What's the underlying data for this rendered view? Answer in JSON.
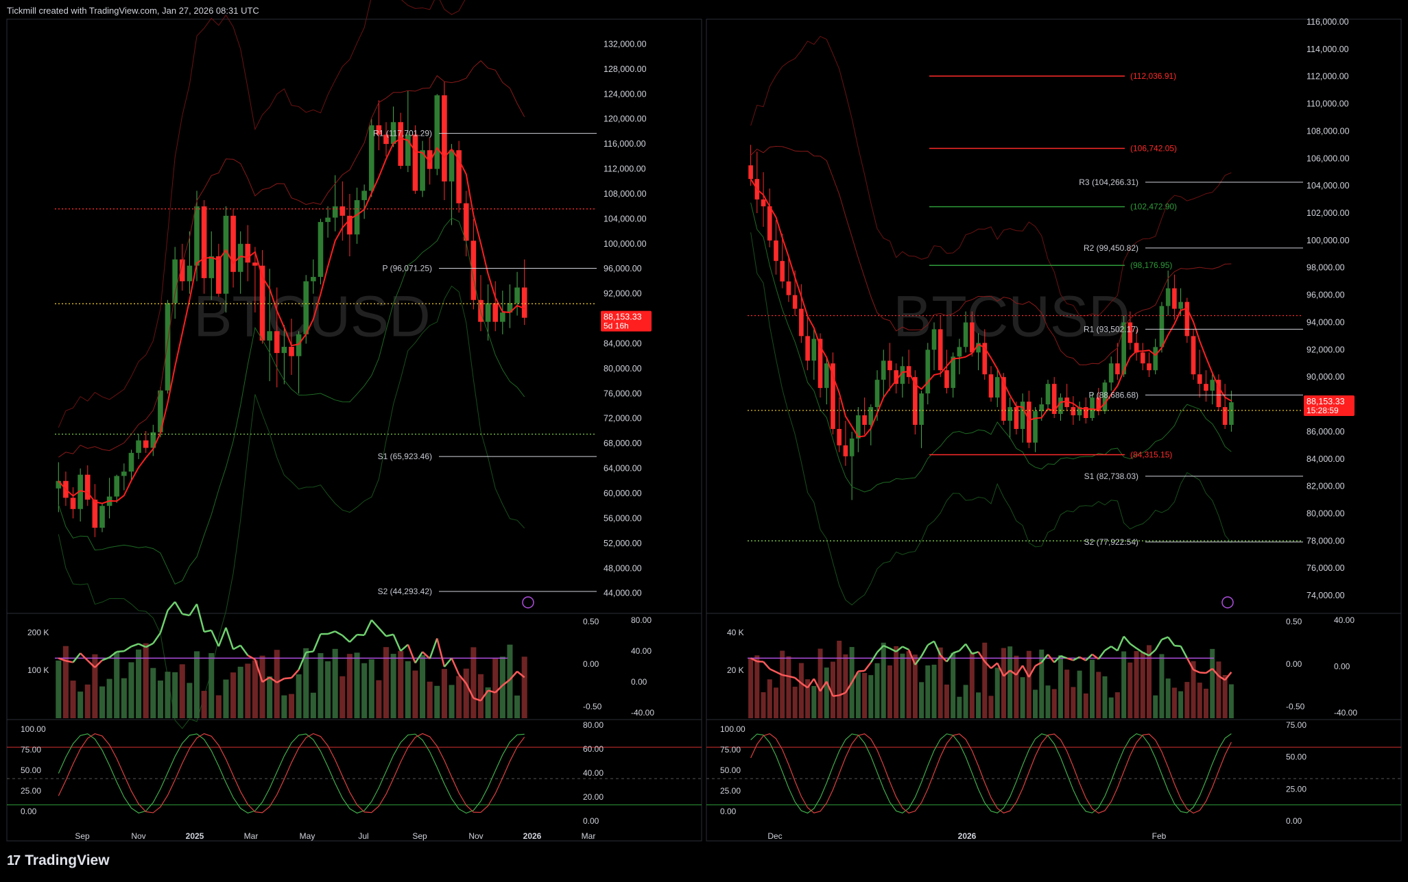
{
  "header": {
    "credit": "Tickmill created with TradingView.com, Jan 27, 2026 08:31 UTC"
  },
  "footer": {
    "brand": "TradingView",
    "logo_icon": "tradingview-logo-icon"
  },
  "colors": {
    "up": "#2e7d32",
    "down": "#ff2a2a",
    "background": "#000000",
    "axis_text": "#d1d4dc",
    "grid": "#1a1a1a",
    "pivot": "#ffffff",
    "price_badge": "#ff1f1f",
    "purple": "#b04fe0"
  },
  "chart_data": [
    {
      "type": "candlestick",
      "symbol_watermark": "BTCUSD",
      "timeframe": "weekly",
      "price_axis": {
        "ticks": [
          "132,000.00",
          "128,000.00",
          "124,000.00",
          "120,000.00",
          "116,000.00",
          "112,000.00",
          "108,000.00",
          "104,000.00",
          "100,000.00",
          "96,000.00",
          "92,000.00",
          "88,000.00",
          "84,000.00",
          "80,000.00",
          "76,000.00",
          "72,000.00",
          "68,000.00",
          "64,000.00",
          "60,000.00",
          "56,000.00",
          "52,000.00",
          "48,000.00",
          "44,000.00"
        ],
        "ylim": [
          41000,
          136000
        ]
      },
      "time_axis": {
        "ticks": [
          "Sep",
          "Nov",
          "2025",
          "Mar",
          "May",
          "Jul",
          "Sep",
          "Nov",
          "2026",
          "Mar"
        ],
        "bold": [
          "2025",
          "2026"
        ]
      },
      "last_price": {
        "value": "88,153.33",
        "countdown": "5d 16h"
      },
      "pivots": [
        {
          "label": "R1 (117,701.29)",
          "value": 117701.29
        },
        {
          "label": "P (96,071.25)",
          "value": 96071.25
        },
        {
          "label": "S1 (65,923.46)",
          "value": 65923.46
        },
        {
          "label": "S2 (44,293.42)",
          "value": 44293.42
        }
      ],
      "volume_pane": {
        "left_ticks": [
          "200 K",
          "100 K"
        ],
        "right_ticks": [
          "0.50",
          "0.00",
          "-0.50"
        ],
        "right_outer_ticks": [
          "80.00",
          "40.00",
          "0.00",
          "-40.00"
        ]
      },
      "stoch_pane": {
        "left_ticks": [
          "100.00",
          "75.00",
          "50.00",
          "25.00",
          "0.00"
        ],
        "right_ticks": [
          "80.00",
          "60.00",
          "40.00",
          "20.00",
          "0.00"
        ]
      },
      "candles": [
        [
          60800,
          65000,
          57000,
          62000
        ],
        [
          62000,
          63500,
          58000,
          59300
        ],
        [
          59300,
          61000,
          56000,
          57500
        ],
        [
          57500,
          64000,
          55500,
          63000
        ],
        [
          63000,
          64500,
          58000,
          59000
        ],
        [
          59000,
          61500,
          53000,
          54500
        ],
        [
          54500,
          58500,
          53800,
          58000
        ],
        [
          58000,
          62500,
          56000,
          59500
        ],
        [
          59500,
          63000,
          58500,
          62800
        ],
        [
          62800,
          64800,
          60500,
          63500
        ],
        [
          63500,
          67000,
          62000,
          66500
        ],
        [
          66500,
          69500,
          65500,
          68500
        ],
        [
          68500,
          70000,
          66500,
          67300
        ],
        [
          67300,
          71000,
          66000,
          69800
        ],
        [
          69800,
          77000,
          69000,
          76500
        ],
        [
          76500,
          91000,
          76000,
          90500
        ],
        [
          90500,
          99500,
          88000,
          97500
        ],
        [
          97500,
          100000,
          92500,
          94000
        ],
        [
          94000,
          102000,
          92000,
          96500
        ],
        [
          96500,
          108500,
          94000,
          106000
        ],
        [
          106000,
          107000,
          92000,
          94500
        ],
        [
          94500,
          102000,
          91000,
          98000
        ],
        [
          98000,
          100000,
          91500,
          92000
        ],
        [
          92000,
          106000,
          89000,
          104500
        ],
        [
          104500,
          105500,
          93000,
          95500
        ],
        [
          95500,
          102000,
          92000,
          100000
        ],
        [
          100000,
          103000,
          94000,
          97000
        ],
        [
          97000,
          99500,
          89000,
          96500
        ],
        [
          96500,
          99000,
          84000,
          84500
        ],
        [
          84500,
          96000,
          78000,
          86000
        ],
        [
          86000,
          93000,
          77000,
          82500
        ],
        [
          82500,
          87000,
          77500,
          83500
        ],
        [
          83500,
          88000,
          79000,
          82000
        ],
        [
          82000,
          86000,
          76000,
          85500
        ],
        [
          85500,
          95000,
          84000,
          94000
        ],
        [
          94000,
          97500,
          92000,
          94700
        ],
        [
          94700,
          104000,
          93500,
          103500
        ],
        [
          103500,
          106000,
          101000,
          104200
        ],
        [
          104200,
          111000,
          102000,
          106000
        ],
        [
          106000,
          110000,
          100500,
          104500
        ],
        [
          104500,
          108000,
          98000,
          101500
        ],
        [
          101500,
          109000,
          100000,
          107000
        ],
        [
          107000,
          109500,
          104000,
          108500
        ],
        [
          108500,
          120000,
          107500,
          119000
        ],
        [
          119000,
          123000,
          115000,
          117500
        ],
        [
          117500,
          119500,
          114000,
          116000
        ],
        [
          116000,
          122000,
          115500,
          119500
        ],
        [
          119500,
          121000,
          112000,
          112500
        ],
        [
          112500,
          124500,
          111500,
          117500
        ],
        [
          117500,
          119000,
          108000,
          108500
        ],
        [
          108500,
          116500,
          107500,
          115000
        ],
        [
          115000,
          117000,
          109500,
          112000
        ],
        [
          112000,
          124000,
          111000,
          123800
        ],
        [
          123800,
          126000,
          107000,
          110000
        ],
        [
          110000,
          116000,
          103000,
          115000
        ],
        [
          115000,
          116500,
          105000,
          106500
        ],
        [
          106500,
          108500,
          98000,
          100500
        ],
        [
          100500,
          104000,
          89500,
          91000
        ],
        [
          91000,
          95000,
          86000,
          87500
        ],
        [
          87500,
          93500,
          84500,
          90500
        ],
        [
          90500,
          94000,
          86000,
          87500
        ],
        [
          87500,
          92500,
          85500,
          89000
        ],
        [
          89000,
          93500,
          86500,
          90500
        ],
        [
          90500,
          95500,
          88500,
          93000
        ],
        [
          93000,
          97500,
          87000,
          88153
        ]
      ]
    },
    {
      "type": "candlestick",
      "symbol_watermark": "BTCUSD",
      "timeframe": "daily",
      "price_axis": {
        "ticks": [
          "116,000.00",
          "114,000.00",
          "112,000.00",
          "110,000.00",
          "108,000.00",
          "106,000.00",
          "104,000.00",
          "102,000.00",
          "100,000.00",
          "98,000.00",
          "96,000.00",
          "94,000.00",
          "92,000.00",
          "90,000.00",
          "88,000.00",
          "86,000.00",
          "84,000.00",
          "82,000.00",
          "80,000.00",
          "78,000.00",
          "76,000.00",
          "74,000.00"
        ],
        "ylim": [
          72800,
          116200
        ]
      },
      "time_axis": {
        "ticks": [
          "Dec",
          "2026",
          "Feb"
        ],
        "bold": [
          "2026"
        ]
      },
      "last_price": {
        "value": "88,153.33",
        "countdown": "15:28:59"
      },
      "pivots": [
        {
          "label": "R3 (104,266.31)",
          "value": 104266.31
        },
        {
          "label": "R2 (99,450.82)",
          "value": 99450.82
        },
        {
          "label": "R1 (93,502.17)",
          "value": 93502.17
        },
        {
          "label": "P (88,686.68)",
          "value": 88686.68
        },
        {
          "label": "S1 (82,738.03)",
          "value": 82738.03
        },
        {
          "label": "S2 (77,922.54)",
          "value": 77922.54
        }
      ],
      "fib_levels": [
        {
          "label": "(112,036.91)",
          "value": 112036.91,
          "color": "#ff2a2a"
        },
        {
          "label": "(106,742.05)",
          "value": 106742.05,
          "color": "#ff2a2a"
        },
        {
          "label": "(102,472.90)",
          "value": 102472.9,
          "color": "#2e9d3a"
        },
        {
          "label": "(98,176.95)",
          "value": 98176.95,
          "color": "#2e9d3a"
        },
        {
          "label": "(84,315.15)",
          "value": 84315.15,
          "color": "#ff2a2a"
        }
      ],
      "volume_pane": {
        "left_ticks": [
          "40 K",
          "20 K"
        ],
        "right_ticks": [
          "0.50",
          "0.00",
          "-0.50"
        ],
        "right_outer_ticks": [
          "40.00",
          "0.00",
          "-40.00"
        ]
      },
      "stoch_pane": {
        "left_ticks": [
          "100.00",
          "75.00",
          "50.00",
          "25.00",
          "0.00"
        ],
        "right_ticks": [
          "75.00",
          "50.00",
          "25.00",
          "0.00"
        ]
      },
      "candles": [
        [
          105500,
          107000,
          104000,
          104500
        ],
        [
          104500,
          106500,
          102000,
          103000
        ],
        [
          103000,
          105000,
          101000,
          102500
        ],
        [
          102500,
          103800,
          99500,
          100000
        ],
        [
          100000,
          101500,
          97500,
          98500
        ],
        [
          98500,
          100500,
          96500,
          97000
        ],
        [
          97000,
          98800,
          95500,
          96000
        ],
        [
          96000,
          97800,
          94500,
          95000
        ],
        [
          95000,
          96800,
          92500,
          93000
        ],
        [
          93000,
          94500,
          90500,
          91200
        ],
        [
          91200,
          93500,
          89800,
          92800
        ],
        [
          92800,
          93200,
          88500,
          89200
        ],
        [
          89200,
          91500,
          88000,
          91000
        ],
        [
          91000,
          91800,
          85800,
          86200
        ],
        [
          86200,
          88500,
          84500,
          85000
        ],
        [
          85000,
          86800,
          83500,
          84200
        ],
        [
          84200,
          86000,
          81000,
          85500
        ],
        [
          85500,
          87800,
          84500,
          87200
        ],
        [
          87200,
          88500,
          85800,
          86500
        ],
        [
          86500,
          88000,
          85000,
          87800
        ],
        [
          87800,
          90500,
          86800,
          89800
        ],
        [
          89800,
          92000,
          88500,
          91200
        ],
        [
          91200,
          92500,
          89000,
          90500
        ],
        [
          90500,
          91000,
          88800,
          89500
        ],
        [
          89500,
          91500,
          88500,
          90800
        ],
        [
          90800,
          92000,
          89500,
          90000
        ],
        [
          90000,
          90500,
          85800,
          86500
        ],
        [
          86500,
          89000,
          84800,
          88800
        ],
        [
          88800,
          92500,
          88000,
          92000
        ],
        [
          92000,
          94000,
          90500,
          93500
        ],
        [
          93500,
          94500,
          90000,
          90500
        ],
        [
          90500,
          92000,
          88800,
          89200
        ],
        [
          89200,
          91800,
          88500,
          91500
        ],
        [
          91500,
          92800,
          90200,
          92200
        ],
        [
          92200,
          94800,
          91800,
          94000
        ],
        [
          94000,
          94800,
          91500,
          91800
        ],
        [
          91800,
          93200,
          90500,
          92500
        ],
        [
          92500,
          93500,
          89800,
          90200
        ],
        [
          90200,
          90800,
          88200,
          88500
        ],
        [
          88500,
          90500,
          87800,
          90000
        ],
        [
          90000,
          90300,
          86500,
          86800
        ],
        [
          86800,
          88500,
          85500,
          87800
        ],
        [
          87800,
          88200,
          85800,
          86200
        ],
        [
          86200,
          88800,
          85200,
          88200
        ],
        [
          88200,
          89000,
          84800,
          85200
        ],
        [
          85200,
          87800,
          84500,
          87500
        ],
        [
          87500,
          88500,
          86800,
          88000
        ],
        [
          88000,
          89800,
          87500,
          89500
        ],
        [
          89500,
          90000,
          87000,
          87300
        ],
        [
          87300,
          88800,
          86800,
          88500
        ],
        [
          88500,
          89500,
          87500,
          87800
        ],
        [
          87800,
          88600,
          86500,
          87200
        ],
        [
          87200,
          88200,
          86800,
          87800
        ],
        [
          87800,
          88500,
          86600,
          87000
        ],
        [
          87000,
          88800,
          86800,
          88500
        ],
        [
          88500,
          89200,
          87200,
          87500
        ],
        [
          87500,
          89800,
          87300,
          89600
        ],
        [
          89600,
          91500,
          89000,
          91000
        ],
        [
          91000,
          92500,
          89800,
          90200
        ],
        [
          90200,
          94500,
          90000,
          94000
        ],
        [
          94000,
          94800,
          92000,
          92500
        ],
        [
          92500,
          93500,
          91200,
          91800
        ],
        [
          91800,
          92500,
          90500,
          91000
        ],
        [
          91000,
          91800,
          90000,
          90500
        ],
        [
          90500,
          92800,
          90200,
          92200
        ],
        [
          92200,
          95500,
          91800,
          95200
        ],
        [
          95200,
          97800,
          94500,
          96500
        ],
        [
          96500,
          97500,
          94200,
          95000
        ],
        [
          95000,
          96500,
          94500,
          95500
        ],
        [
          95500,
          95800,
          92500,
          93000
        ],
        [
          93000,
          93500,
          89800,
          90200
        ],
        [
          90200,
          92000,
          88500,
          89500
        ],
        [
          89500,
          90500,
          88200,
          89000
        ],
        [
          89000,
          90200,
          88000,
          89800
        ],
        [
          89800,
          90200,
          87500,
          87800
        ],
        [
          87800,
          89500,
          86200,
          86500
        ],
        [
          86500,
          89000,
          86000,
          88153
        ]
      ]
    }
  ]
}
